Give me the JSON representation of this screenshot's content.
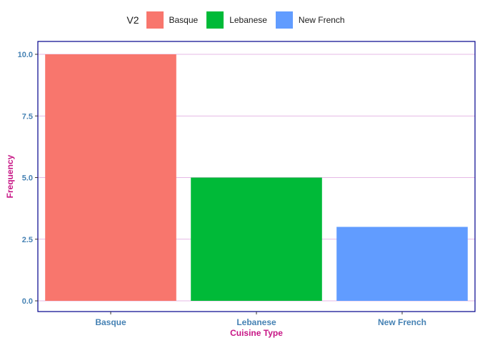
{
  "chart_data": {
    "type": "bar",
    "categories": [
      "Basque",
      "Lebanese",
      "New French"
    ],
    "values": [
      10,
      5,
      3
    ],
    "colors": [
      "#F8766D",
      "#00BA38",
      "#619CFF"
    ],
    "xlabel": "Cuisine Type",
    "ylabel": "Frequency",
    "ylim": [
      0,
      10.5
    ],
    "yticks": [
      0,
      2.5,
      5,
      7.5,
      10
    ],
    "ytick_labels": [
      "0.0",
      "2.5",
      "5.0",
      "7.5",
      "10.0"
    ],
    "legend": {
      "title": "V2",
      "position": "top",
      "entries": [
        "Basque",
        "Lebanese",
        "New French"
      ]
    },
    "grid": true,
    "style": {
      "panel_border_color": "#00008B",
      "grid_color": "#DDA0DD",
      "tick_label_color": "#4682B4",
      "axis_title_color": "#C71585"
    }
  }
}
